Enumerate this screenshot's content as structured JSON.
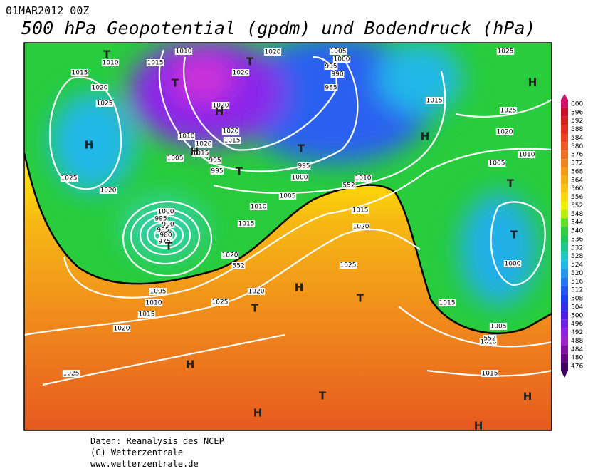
{
  "header": {
    "date": "01MAR2012 00Z",
    "title": "500 hPa Geopotential (gpdm) und Bodendruck (hPa)"
  },
  "map": {
    "pressure_labels": [
      1010,
      1015,
      1010,
      1020,
      1005,
      1000,
      995,
      990,
      985,
      1025,
      1015,
      1020,
      1025,
      1020,
      1020,
      1020,
      1015,
      1010,
      1020,
      1015,
      1005,
      995,
      995,
      995,
      1000,
      1015,
      1025,
      1020,
      1010,
      1005,
      1010,
      1005,
      1010,
      1015,
      1015,
      1020,
      1025,
      1020,
      1000,
      995,
      990,
      985,
      980,
      975,
      1020,
      1020,
      1025,
      1025,
      1005,
      1010,
      1015,
      1020,
      1025,
      1015,
      1000,
      1005,
      1010,
      1015
    ],
    "geopotential_labels": [
      552,
      552,
      552
    ],
    "centers": [
      "T",
      "T",
      "T",
      "H",
      "H",
      "H",
      "T",
      "T",
      "H",
      "H",
      "T",
      "T",
      "T",
      "H",
      "T",
      "T",
      "H",
      "T",
      "H",
      "H",
      "H"
    ]
  },
  "colorbar": {
    "ticks": [
      600,
      596,
      592,
      588,
      584,
      580,
      576,
      572,
      568,
      564,
      560,
      556,
      552,
      548,
      544,
      540,
      536,
      532,
      528,
      524,
      520,
      516,
      512,
      508,
      504,
      500,
      496,
      492,
      488,
      484,
      480,
      476
    ],
    "colors": [
      "#d0106a",
      "#c8102a",
      "#d02020",
      "#e03020",
      "#e84420",
      "#ec5a20",
      "#f07020",
      "#f28420",
      "#f49a1a",
      "#f6ae14",
      "#f8c410",
      "#f8dc08",
      "#f0f000",
      "#b8ee10",
      "#60e020",
      "#30d040",
      "#20c860",
      "#20c890",
      "#20c8c0",
      "#20b8e8",
      "#2098f0",
      "#2078f0",
      "#2058f0",
      "#2040f0",
      "#3030e8",
      "#5020e0",
      "#7020e0",
      "#9020e0",
      "#a020d0",
      "#8010a0",
      "#600880",
      "#400060"
    ]
  },
  "footer": {
    "lines": [
      "Daten: Reanalysis des NCEP",
      "(C) Wetterzentrale",
      "www.wetterzentrale.de"
    ]
  }
}
